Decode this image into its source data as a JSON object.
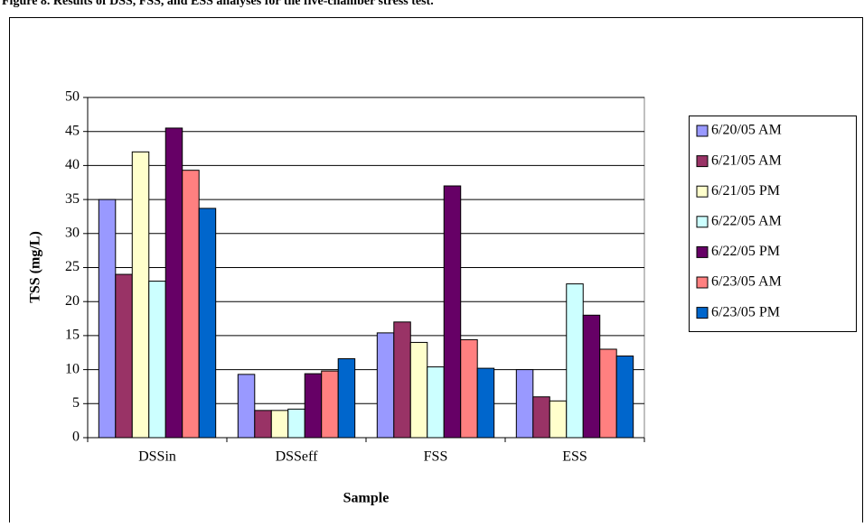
{
  "caption": "Figure 8. Results of DSS, FSS, and ESS analyses for the five-chamber stress test.",
  "chart_data": {
    "type": "bar",
    "x_label": "Sample",
    "y_label": "TSS (mg/L)",
    "categories": [
      "DSSin",
      "DSSeff",
      "FSS",
      "ESS"
    ],
    "series": [
      {
        "name": "6/20/05 AM",
        "color": "#9999ff",
        "values": [
          35,
          9.3,
          15.4,
          10
        ]
      },
      {
        "name": "6/21/05 AM",
        "color": "#993366",
        "values": [
          24,
          4,
          17,
          6
        ]
      },
      {
        "name": "6/21/05 PM",
        "color": "#ffffcc",
        "values": [
          42,
          4,
          14,
          5.4
        ]
      },
      {
        "name": "6/22/05 AM",
        "color": "#ccffff",
        "values": [
          23,
          4.2,
          10.4,
          22.6
        ]
      },
      {
        "name": "6/22/05 PM",
        "color": "#660066",
        "values": [
          45.5,
          9.4,
          37,
          18
        ]
      },
      {
        "name": "6/23/05 AM",
        "color": "#ff8080",
        "values": [
          39.3,
          9.8,
          14.4,
          13
        ]
      },
      {
        "name": "6/23/05 PM",
        "color": "#0066cc",
        "values": [
          33.7,
          11.6,
          10.2,
          12
        ]
      }
    ],
    "ylim": [
      0,
      50
    ],
    "yticks": [
      0,
      5,
      10,
      15,
      20,
      25,
      30,
      35,
      40,
      45,
      50
    ],
    "grid": true,
    "legend": "right"
  }
}
